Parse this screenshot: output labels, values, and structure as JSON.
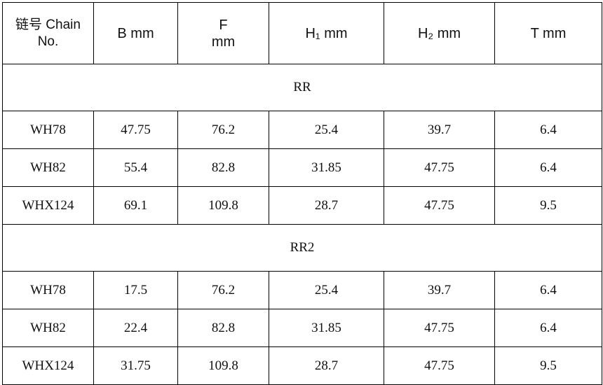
{
  "table": {
    "header": [
      [
        "链号 Chain",
        "No."
      ],
      [
        "B mm"
      ],
      [
        "F",
        "mm"
      ],
      [
        "H₁ mm"
      ],
      [
        "H₂ mm"
      ],
      [
        "T mm"
      ]
    ],
    "sections": [
      {
        "label": "RR",
        "rows": [
          [
            "WH78",
            "47.75",
            "76.2",
            "25.4",
            "39.7",
            "6.4"
          ],
          [
            "WH82",
            "55.4",
            "82.8",
            "31.85",
            "47.75",
            "6.4"
          ],
          [
            "WHX124",
            "69.1",
            "109.8",
            "28.7",
            "47.75",
            "9.5"
          ]
        ]
      },
      {
        "label": "RR2",
        "rows": [
          [
            "WH78",
            "17.5",
            "76.2",
            "25.4",
            "39.7",
            "6.4"
          ],
          [
            "WH82",
            "22.4",
            "82.8",
            "31.85",
            "47.75",
            "6.4"
          ],
          [
            "WHX124",
            "31.75",
            "109.8",
            "28.7",
            "47.75",
            "9.5"
          ]
        ]
      }
    ]
  }
}
